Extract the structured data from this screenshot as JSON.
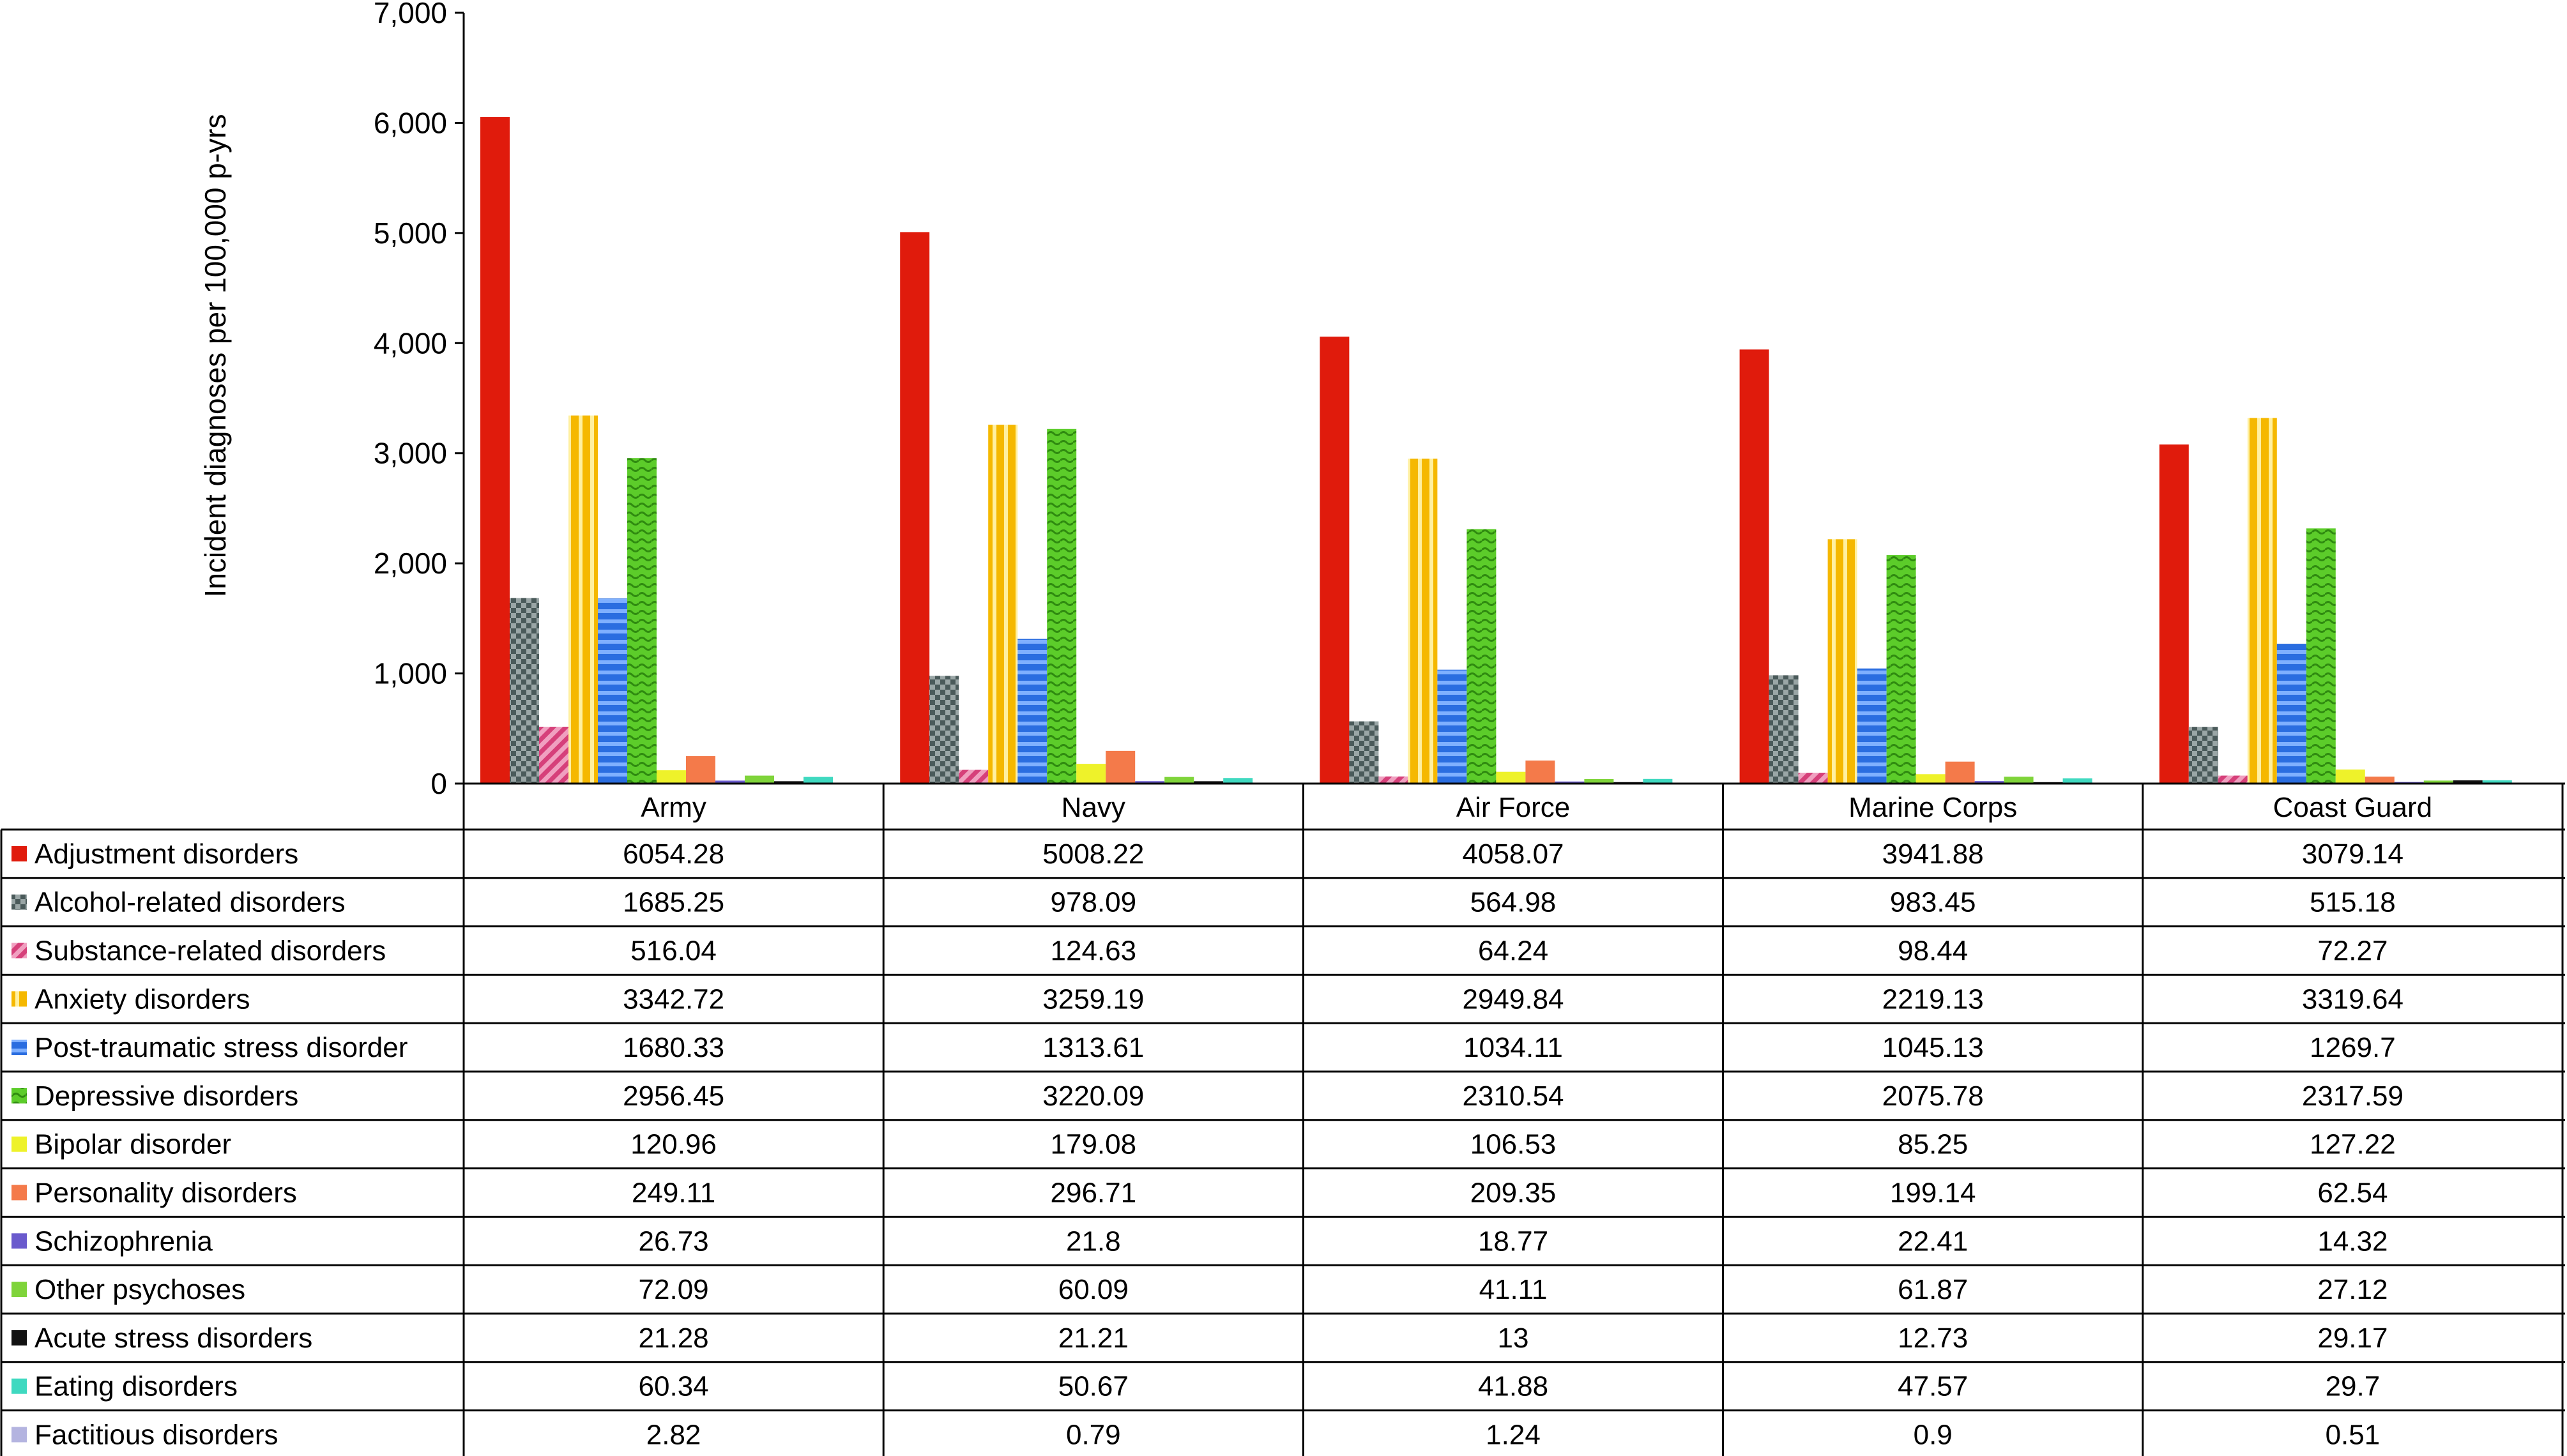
{
  "chart_data": {
    "type": "bar",
    "ylabel": "Incident diagnoses per 100,000 p-yrs",
    "xlabel": "",
    "ylim": [
      0,
      7000
    ],
    "yticks": [
      0,
      1000,
      2000,
      3000,
      4000,
      5000,
      6000,
      7000
    ],
    "ytick_labels": [
      "0",
      "1,000",
      "2,000",
      "3,000",
      "4,000",
      "5,000",
      "6,000",
      "7,000"
    ],
    "grid": false,
    "legend": "data-table-below",
    "categories": [
      "Army",
      "Navy",
      "Air Force",
      "Marine Corps",
      "Coast Guard"
    ],
    "series": [
      {
        "name": "Adjustment disorders",
        "color": "#e01b0c",
        "pattern": "solid",
        "values": [
          6054.28,
          5008.22,
          4058.07,
          3941.88,
          3079.14
        ]
      },
      {
        "name": "Alcohol-related disorders",
        "color": "#4a5a5a",
        "pattern": "checker",
        "values": [
          1685.25,
          978.09,
          564.98,
          983.45,
          515.18
        ]
      },
      {
        "name": "Substance-related disorders",
        "color": "#d6407a",
        "pattern": "diagonal",
        "values": [
          516.04,
          124.63,
          64.24,
          98.44,
          72.27
        ]
      },
      {
        "name": "Anxiety disorders",
        "color": "#f5b800",
        "pattern": "vertical-stripes",
        "values": [
          3342.72,
          3259.19,
          2949.84,
          2219.13,
          3319.64
        ]
      },
      {
        "name": "Post-traumatic stress disorder",
        "color": "#2a6de0",
        "pattern": "horizontal-stripes",
        "values": [
          1680.33,
          1313.61,
          1034.11,
          1045.13,
          1269.7
        ]
      },
      {
        "name": "Depressive disorders",
        "color": "#5ccc2a",
        "pattern": "wave",
        "values": [
          2956.45,
          3220.09,
          2310.54,
          2075.78,
          2317.59
        ]
      },
      {
        "name": "Bipolar disorder",
        "color": "#eef22a",
        "pattern": "solid",
        "values": [
          120.96,
          179.08,
          106.53,
          85.25,
          127.22
        ]
      },
      {
        "name": "Personality disorders",
        "color": "#f47a4a",
        "pattern": "solid",
        "values": [
          249.11,
          296.71,
          209.35,
          199.14,
          62.54
        ]
      },
      {
        "name": "Schizophrenia",
        "color": "#6a5acd",
        "pattern": "solid",
        "values": [
          26.73,
          21.8,
          18.77,
          22.41,
          14.32
        ]
      },
      {
        "name": "Other psychoses",
        "color": "#7fd43a",
        "pattern": "solid",
        "values": [
          72.09,
          60.09,
          41.11,
          61.87,
          27.12
        ]
      },
      {
        "name": "Acute stress disorders",
        "color": "#111111",
        "pattern": "solid",
        "values": [
          21.28,
          21.21,
          13,
          12.73,
          29.17
        ]
      },
      {
        "name": "Eating disorders",
        "color": "#3fd9c0",
        "pattern": "solid",
        "values": [
          60.34,
          50.67,
          41.88,
          47.57,
          29.7
        ]
      },
      {
        "name": "Factitious disorders",
        "color": "#b4b4e0",
        "pattern": "solid",
        "values": [
          2.82,
          0.79,
          1.24,
          0.9,
          0.51
        ]
      }
    ],
    "table_values_text": [
      [
        "6054.28",
        "5008.22",
        "4058.07",
        "3941.88",
        "3079.14"
      ],
      [
        "1685.25",
        "978.09",
        "564.98",
        "983.45",
        "515.18"
      ],
      [
        "516.04",
        "124.63",
        "64.24",
        "98.44",
        "72.27"
      ],
      [
        "3342.72",
        "3259.19",
        "2949.84",
        "2219.13",
        "3319.64"
      ],
      [
        "1680.33",
        "1313.61",
        "1034.11",
        "1045.13",
        "1269.7"
      ],
      [
        "2956.45",
        "3220.09",
        "2310.54",
        "2075.78",
        "2317.59"
      ],
      [
        "120.96",
        "179.08",
        "106.53",
        "85.25",
        "127.22"
      ],
      [
        "249.11",
        "296.71",
        "209.35",
        "199.14",
        "62.54"
      ],
      [
        "26.73",
        "21.8",
        "18.77",
        "22.41",
        "14.32"
      ],
      [
        "72.09",
        "60.09",
        "41.11",
        "61.87",
        "27.12"
      ],
      [
        "21.28",
        "21.21",
        "13",
        "12.73",
        "29.17"
      ],
      [
        "60.34",
        "50.67",
        "41.88",
        "47.57",
        "29.7"
      ],
      [
        "2.82",
        "0.79",
        "1.24",
        "0.9",
        "0.51"
      ]
    ]
  }
}
